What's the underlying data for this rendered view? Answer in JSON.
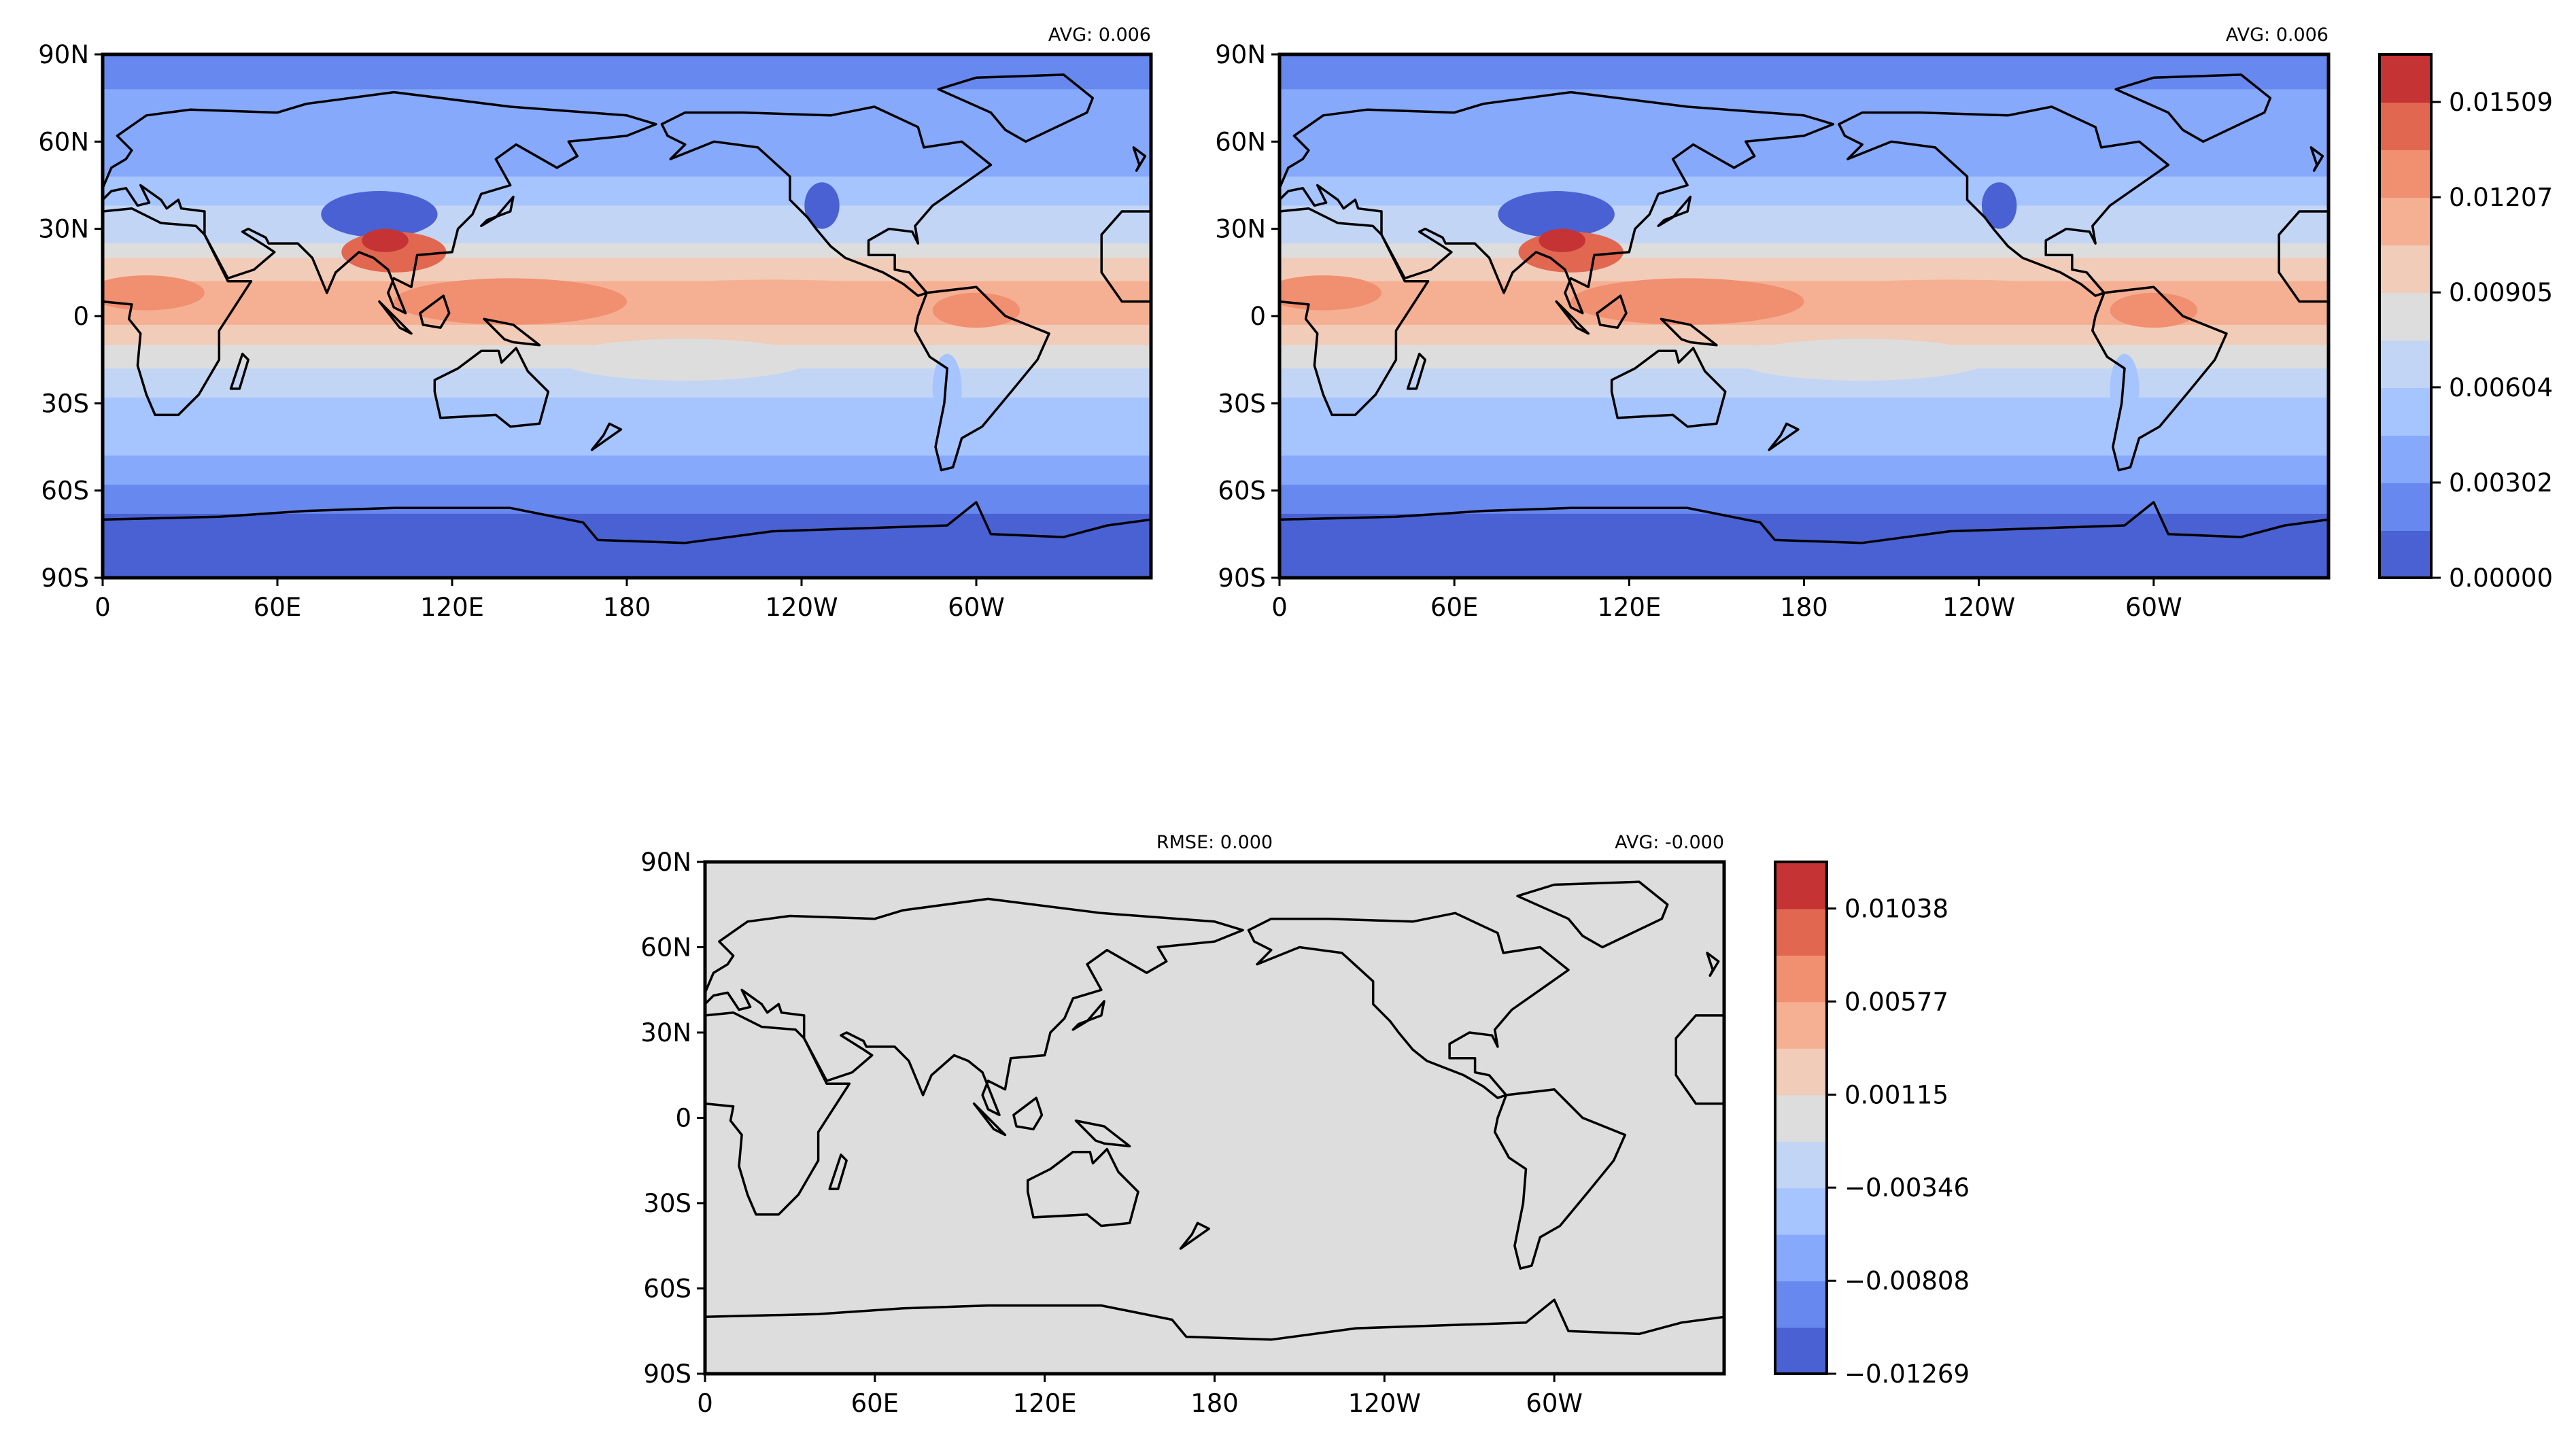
{
  "chart_data": [
    {
      "type": "heatmap",
      "panel": "top-left",
      "title_left": "",
      "title_right": "AVG: 0.006",
      "xticks": [
        "0",
        "60E",
        "120E",
        "180",
        "120W",
        "60W"
      ],
      "xtick_lons": [
        0,
        60,
        120,
        180,
        240,
        300
      ],
      "yticks": [
        "90N",
        "60N",
        "30N",
        "0",
        "30S",
        "60S",
        "90S"
      ],
      "ytick_lats": [
        90,
        60,
        30,
        0,
        -30,
        -60,
        -90
      ],
      "xlim": [
        0,
        360
      ],
      "ylim": [
        -90,
        90
      ],
      "zonal_levels": [
        [
          90,
          78,
          1
        ],
        [
          78,
          62,
          2
        ],
        [
          62,
          48,
          2
        ],
        [
          48,
          38,
          3
        ],
        [
          38,
          25,
          4
        ],
        [
          25,
          20,
          5
        ],
        [
          20,
          12,
          6
        ],
        [
          12,
          5,
          7
        ],
        [
          5,
          -3,
          7
        ],
        [
          -3,
          -10,
          6
        ],
        [
          -10,
          -18,
          5
        ],
        [
          -18,
          -28,
          4
        ],
        [
          -28,
          -40,
          3
        ],
        [
          -40,
          -48,
          3
        ],
        [
          -48,
          -58,
          2
        ],
        [
          -58,
          -68,
          1
        ],
        [
          -68,
          -90,
          0
        ]
      ],
      "features": [
        {
          "name": "tibet-low",
          "lon": 95,
          "lat": 35,
          "rlon": 20,
          "rlat": 8,
          "level": 0
        },
        {
          "name": "rockies-low",
          "lon": 247,
          "lat": 38,
          "rlon": 6,
          "rlat": 8,
          "level": 0
        },
        {
          "name": "south-asia-high",
          "lon": 100,
          "lat": 22,
          "rlon": 18,
          "rlat": 7,
          "level": 9
        },
        {
          "name": "south-asia-core",
          "lon": 97,
          "lat": 26,
          "rlon": 8,
          "rlat": 4,
          "level": 10
        },
        {
          "name": "africa-high",
          "lon": 15,
          "lat": 8,
          "rlon": 20,
          "rlat": 6,
          "level": 8
        },
        {
          "name": "amazon-high",
          "lon": 300,
          "lat": 2,
          "rlon": 15,
          "rlat": 6,
          "level": 8
        },
        {
          "name": "warm-pool",
          "lon": 140,
          "lat": 5,
          "rlon": 40,
          "rlat": 8,
          "level": 8
        },
        {
          "name": "andes-low",
          "lon": 290,
          "lat": -25,
          "rlon": 5,
          "rlat": 12,
          "level": 3
        }
      ]
    },
    {
      "type": "heatmap",
      "panel": "top-right",
      "title_left": "",
      "title_right": "AVG: 0.006",
      "xticks": [
        "0",
        "60E",
        "120E",
        "180",
        "120W",
        "60W"
      ],
      "yticks": [
        "90N",
        "60N",
        "30N",
        "0",
        "30S",
        "60S",
        "90S"
      ],
      "xlim": [
        0,
        360
      ],
      "ylim": [
        -90,
        90
      ],
      "colorbar": {
        "ticks": [
          "0.01509",
          "0.01207",
          "0.00905",
          "0.00604",
          "0.00302",
          "0.00000"
        ],
        "tick_values": [
          0.01509,
          0.01207,
          0.00905,
          0.00604,
          0.00302,
          0.0
        ],
        "range": [
          0.0,
          0.0166
        ]
      }
    },
    {
      "type": "heatmap",
      "panel": "bottom-difference",
      "title_left": "RMSE: 0.000",
      "title_right": "AVG: -0.000",
      "xticks": [
        "0",
        "60E",
        "120E",
        "180",
        "120W",
        "60W"
      ],
      "yticks": [
        "90N",
        "60N",
        "30N",
        "0",
        "30S",
        "60S",
        "90S"
      ],
      "xlim": [
        0,
        360
      ],
      "ylim": [
        -90,
        90
      ],
      "uniform_level": 5,
      "colorbar": {
        "ticks": [
          "0.01038",
          "0.00577",
          "0.00115",
          "−0.00346",
          "−0.00808",
          "−0.01269"
        ],
        "tick_values": [
          0.01038,
          0.00577,
          0.00115,
          -0.00346,
          -0.00808,
          -0.01269
        ],
        "range": [
          -0.01269,
          0.01269
        ]
      }
    }
  ],
  "colors": [
    "#4961d2",
    "#6788ee",
    "#86a9fc",
    "#a6c4fe",
    "#c3d5f4",
    "#dddddd",
    "#f1ccb8",
    "#f5b093",
    "#f18f71",
    "#e16751",
    "#c53334"
  ]
}
